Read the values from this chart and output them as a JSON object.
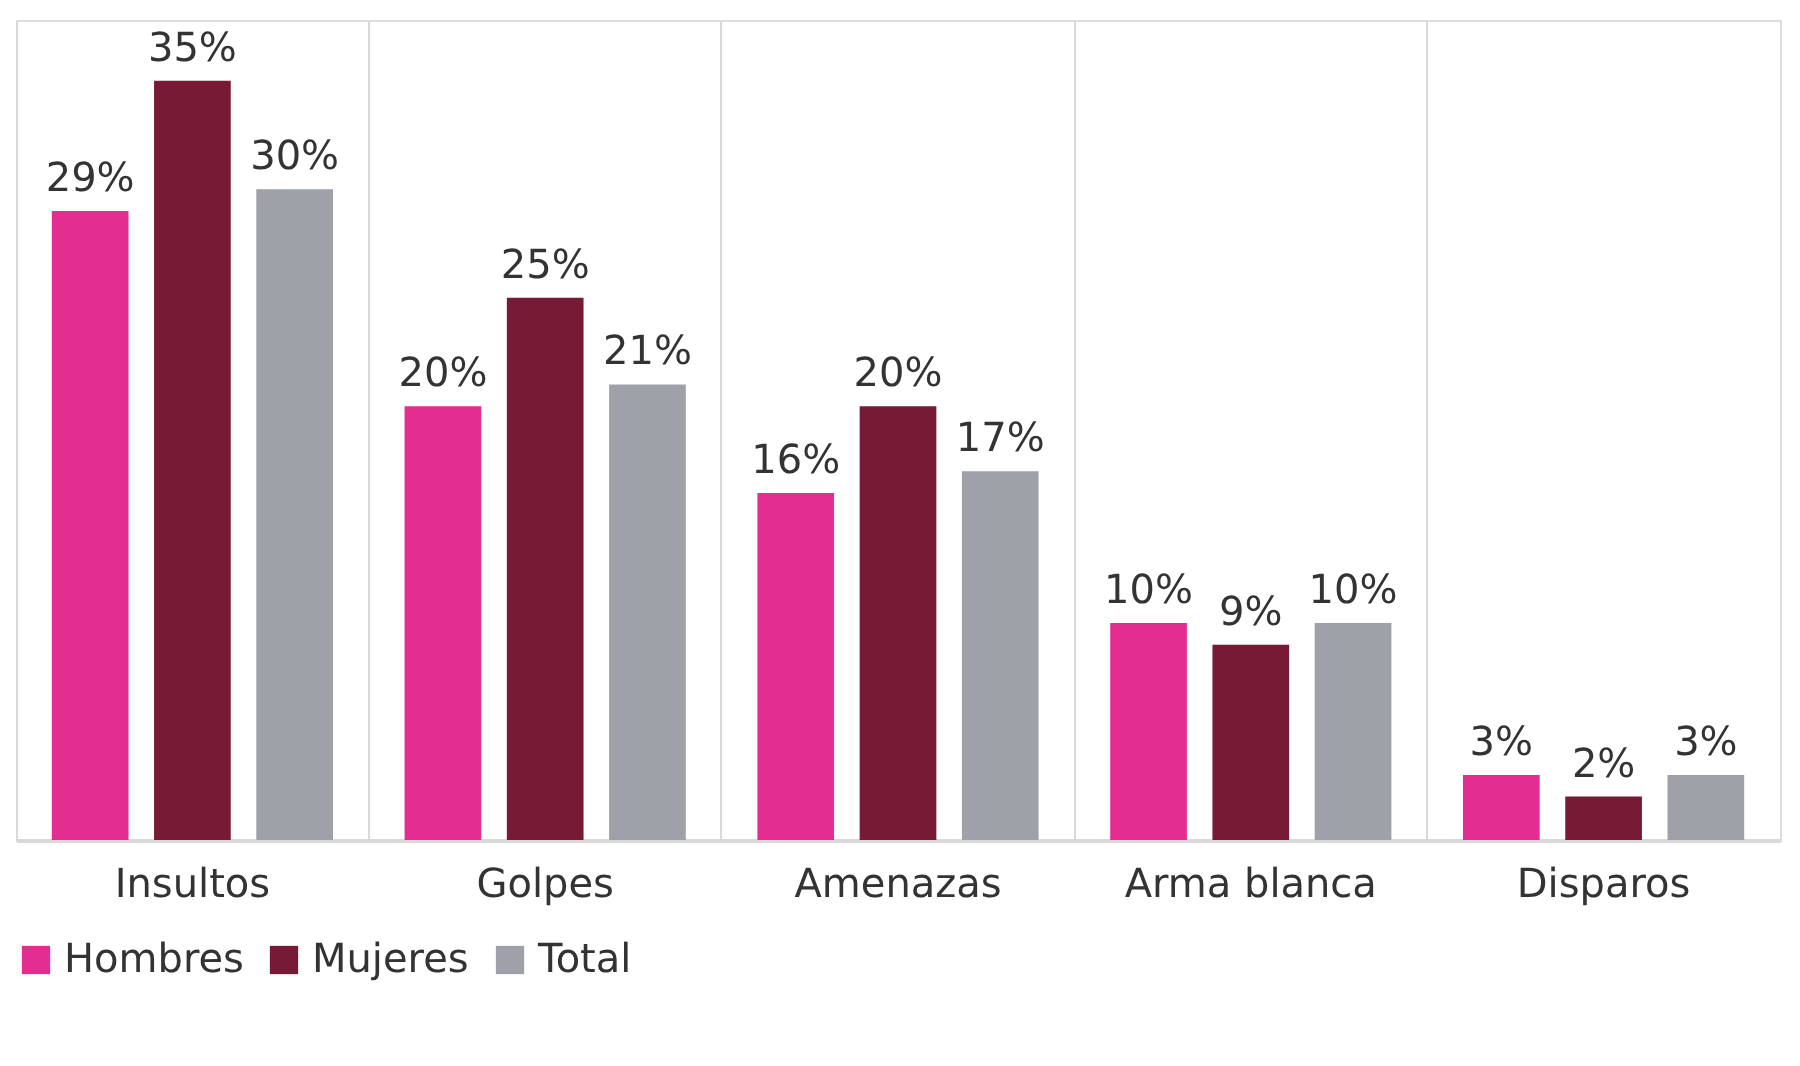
{
  "chart_data": {
    "type": "bar",
    "categories": [
      "Insultos",
      "Golpes",
      "Amenazas",
      "Arma blanca",
      "Disparos"
    ],
    "series": [
      {
        "name": "Hombres",
        "color": "#e32d91",
        "values": [
          29,
          20,
          16,
          10,
          3
        ],
        "value_labels": [
          "29%",
          "20%",
          "16%",
          "10%",
          "3%"
        ]
      },
      {
        "name": "Mujeres",
        "color": "#771a36",
        "values": [
          35,
          25,
          20,
          9,
          2
        ],
        "value_labels": [
          "35%",
          "25%",
          "20%",
          "9%",
          "2%"
        ]
      },
      {
        "name": "Total",
        "color": "#9ea1a8",
        "values": [
          30,
          21,
          17,
          10,
          3
        ],
        "value_labels": [
          "30%",
          "21%",
          "17%",
          "10%",
          "3%"
        ]
      }
    ],
    "grid": "x",
    "legend": "bottom"
  }
}
